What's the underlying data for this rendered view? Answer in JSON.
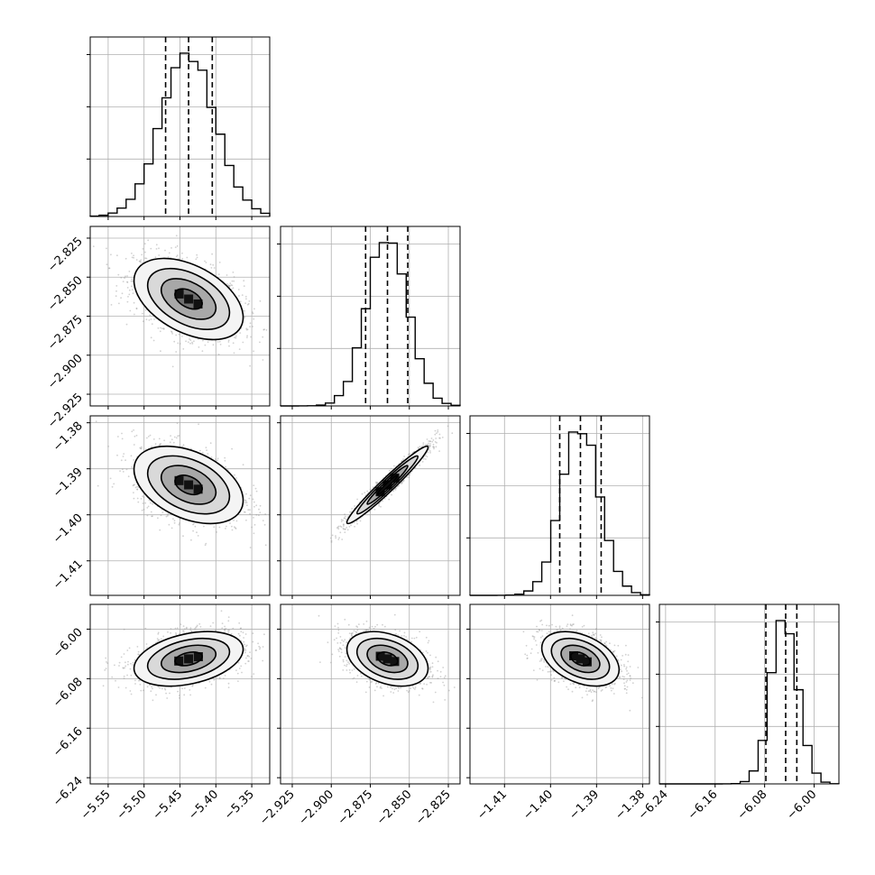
{
  "colors": {
    "ink": "#000000",
    "grid": "#b0b0b0",
    "background": "#ffffff"
  },
  "chart_data": {
    "type": "corner",
    "parameters": [
      {
        "range": [
          -5.575,
          -5.325
        ],
        "ticks": [
          "-5.55",
          "-5.50",
          "-5.45",
          "-5.40",
          "-5.35"
        ],
        "tick_values": [
          -5.55,
          -5.5,
          -5.45,
          -5.4,
          -5.35
        ],
        "mean": -5.438,
        "sd": 0.038,
        "quantiles": [
          -5.47,
          -5.438,
          -5.405
        ]
      },
      {
        "range": [
          -2.9325,
          -2.8175
        ],
        "ticks": [
          "-2.925",
          "-2.900",
          "-2.875",
          "-2.850",
          "-2.825"
        ],
        "tick_values": [
          -2.925,
          -2.9,
          -2.875,
          -2.85,
          -2.825
        ],
        "mean": -2.864,
        "sd": 0.013,
        "quantiles": [
          -2.878,
          -2.864,
          -2.851
        ]
      },
      {
        "range": [
          -1.4175,
          -1.3785
        ],
        "ticks": [
          "-1.41",
          "-1.40",
          "-1.39",
          "-1.38"
        ],
        "tick_values": [
          -1.41,
          -1.4,
          -1.39,
          -1.38
        ],
        "mean": -1.3935,
        "sd": 0.0042,
        "quantiles": [
          -1.398,
          -1.3935,
          -1.389
        ]
      },
      {
        "range": [
          -6.25,
          -5.96
        ],
        "ticks": [
          "-6.24",
          "-6.16",
          "-6.08",
          "-6.00"
        ],
        "tick_values": [
          -6.24,
          -6.16,
          -6.08,
          -6.0
        ],
        "mean": -6.048,
        "sd": 0.022,
        "quantiles": [
          -6.078,
          -6.046,
          -6.028
        ]
      }
    ],
    "pairs": [
      {
        "row": 1,
        "col": 0,
        "rho": -0.45
      },
      {
        "row": 2,
        "col": 0,
        "rho": -0.4
      },
      {
        "row": 2,
        "col": 1,
        "rho": 0.97
      },
      {
        "row": 3,
        "col": 0,
        "rho": 0.35
      },
      {
        "row": 3,
        "col": 1,
        "rho": -0.35
      },
      {
        "row": 3,
        "col": 2,
        "rho": -0.4
      }
    ],
    "contour_levels_sigma": [
      0.5,
      1.0,
      1.5,
      2.0
    ],
    "grid": true
  }
}
